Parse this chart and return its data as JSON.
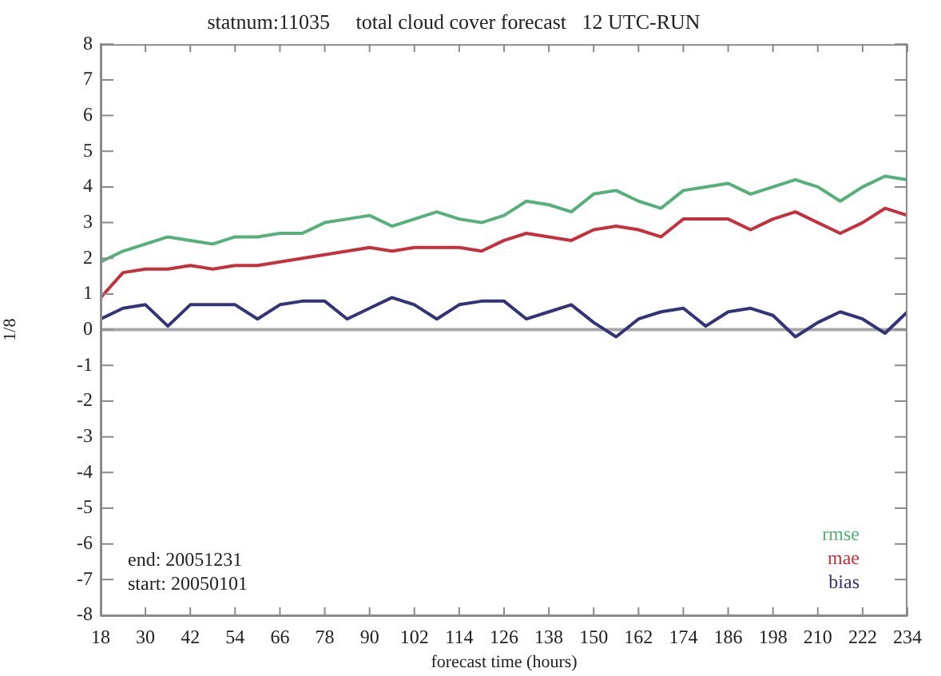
{
  "chart_data": {
    "type": "line",
    "title": "statnum:11035     total cloud cover forecast   12 UTC-RUN",
    "xlabel": "forecast time (hours)",
    "ylabel": "1/8",
    "x": [
      18,
      24,
      30,
      36,
      42,
      48,
      54,
      60,
      66,
      72,
      78,
      84,
      90,
      96,
      102,
      108,
      114,
      120,
      126,
      132,
      138,
      144,
      150,
      156,
      162,
      168,
      174,
      180,
      186,
      192,
      198,
      204,
      210,
      216,
      222,
      228,
      234
    ],
    "series": [
      {
        "name": "rmse",
        "color": "#55b07a",
        "values": [
          1.9,
          2.2,
          2.4,
          2.6,
          2.5,
          2.4,
          2.6,
          2.6,
          2.7,
          2.7,
          3.0,
          3.1,
          3.2,
          2.9,
          3.1,
          3.3,
          3.1,
          3.0,
          3.2,
          3.6,
          3.5,
          3.3,
          3.8,
          3.9,
          3.6,
          3.4,
          3.9,
          4.0,
          4.1,
          3.8,
          4.0,
          4.2,
          4.0,
          3.6,
          4.0,
          4.3,
          4.2
        ]
      },
      {
        "name": "mae",
        "color": "#c4303c",
        "values": [
          0.9,
          1.6,
          1.7,
          1.7,
          1.8,
          1.7,
          1.8,
          1.8,
          1.9,
          2.0,
          2.1,
          2.2,
          2.3,
          2.2,
          2.3,
          2.3,
          2.3,
          2.2,
          2.5,
          2.7,
          2.6,
          2.5,
          2.8,
          2.9,
          2.8,
          2.6,
          3.1,
          3.1,
          3.1,
          2.8,
          3.1,
          3.3,
          3.0,
          2.7,
          3.0,
          3.4,
          3.2
        ]
      },
      {
        "name": "bias",
        "color": "#33337a",
        "values": [
          0.3,
          0.6,
          0.7,
          0.1,
          0.7,
          0.7,
          0.7,
          0.3,
          0.7,
          0.8,
          0.8,
          0.3,
          0.6,
          0.9,
          0.7,
          0.3,
          0.7,
          0.8,
          0.8,
          0.3,
          0.5,
          0.7,
          0.2,
          -0.2,
          0.3,
          0.5,
          0.6,
          0.1,
          0.5,
          0.6,
          0.4,
          -0.2,
          0.2,
          0.5,
          0.3,
          -0.1,
          0.5
        ]
      }
    ],
    "xlim": [
      18,
      234
    ],
    "xticks": [
      18,
      30,
      42,
      54,
      66,
      78,
      90,
      102,
      114,
      126,
      138,
      150,
      162,
      174,
      186,
      198,
      210,
      222,
      234
    ],
    "ylim": [
      -8,
      8
    ],
    "yticks": [
      -8,
      -7,
      -6,
      -5,
      -4,
      -3,
      -2,
      -1,
      0,
      1,
      2,
      3,
      4,
      5,
      6,
      7,
      8
    ],
    "ref_lines": [
      {
        "axis": "y",
        "value": 0,
        "color": "#a8a8a8"
      }
    ],
    "annotations": [
      "end: 20051231",
      "start: 20050101"
    ],
    "legend": "bottom right",
    "grid": false,
    "marker": "none",
    "line_style": "solid"
  }
}
